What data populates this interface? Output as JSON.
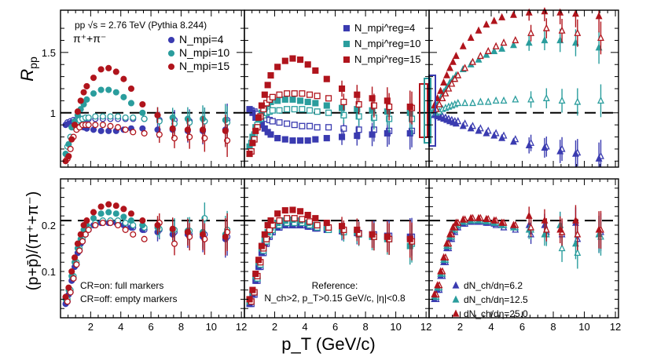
{
  "chart_data": {
    "type": "scatter",
    "title": "pp √s = 2.76 TeV (Pythia 8.244)",
    "particle_label": "π⁺+π⁻",
    "xlabel": "p_T (GeV/c)",
    "x_ticks": [
      "2",
      "4",
      "6",
      "8",
      "10",
      "12"
    ],
    "xlim": [
      0,
      12.2
    ],
    "top_row": {
      "ylabel": "R_pp",
      "ylim": [
        0.55,
        1.85
      ],
      "y_ticks": [
        "1",
        "1.5"
      ],
      "reference_line": 1.0
    },
    "bottom_row": {
      "ylabel": "(p+p̄)/(π⁺+π⁻)",
      "ylim": [
        0.0,
        0.3
      ],
      "y_ticks": [
        "0.1",
        "0.2"
      ],
      "reference_line": 0.21
    },
    "colors": {
      "series1": "#3a3bb0",
      "series2": "#2a9d9d",
      "series3": "#b0141c"
    },
    "legend_left": [
      "N_mpi=4",
      "N_mpi=10",
      "N_mpi=15"
    ],
    "legend_middle": [
      "N_mpi^reg=4",
      "N_mpi^reg=10",
      "N_mpi^reg=15"
    ],
    "legend_right": [
      "dN_ch/dη=6.2",
      "dN_ch/dη=12.5",
      "dN_ch/dη=25.0"
    ],
    "notes": {
      "cr_on": "CR=on: full markers",
      "cr_off": "CR=off: empty markers",
      "reference": "Reference:",
      "cuts": "N_ch>2, p_T>0.15 GeV/c, |η|<0.8"
    },
    "x_points": [
      0.4,
      0.6,
      0.8,
      1.0,
      1.2,
      1.4,
      1.6,
      1.8,
      2.25,
      2.75,
      3.25,
      3.75,
      4.25,
      4.75,
      5.5,
      6.5,
      7.5,
      8.5,
      9.5,
      11.0
    ],
    "panels": [
      {
        "name": "Nmpi",
        "row": "top",
        "col": 0,
        "marker": "circle",
        "series": [
          {
            "name": "N_mpi=4",
            "color_key": "series1",
            "full": [
              0.9,
              0.91,
              0.92,
              0.91,
              0.9,
              0.89,
              0.88,
              0.87,
              0.86,
              0.85,
              0.85,
              0.85,
              0.86,
              0.87,
              0.87,
              0.86,
              0.86,
              0.85,
              0.85,
              0.86
            ],
            "empty": [
              0.92,
              0.93,
              0.94,
              0.94,
              0.95,
              0.95,
              0.95,
              0.95,
              0.95,
              0.95,
              0.95,
              0.95,
              0.95,
              0.95,
              0.95,
              0.94,
              0.94,
              0.93,
              0.93,
              0.94
            ]
          },
          {
            "name": "N_mpi=10",
            "color_key": "series2",
            "full": [
              0.66,
              0.74,
              0.88,
              0.93,
              0.98,
              1.03,
              1.07,
              1.11,
              1.16,
              1.19,
              1.19,
              1.17,
              1.13,
              1.08,
              1.0,
              0.98,
              0.96,
              0.95,
              0.95,
              0.94
            ],
            "empty": [
              0.72,
              0.8,
              0.88,
              0.92,
              0.94,
              0.95,
              0.96,
              0.96,
              0.97,
              0.97,
              0.97,
              0.97,
              0.96,
              0.96,
              0.95,
              0.93,
              0.91,
              0.92,
              0.93,
              0.92
            ]
          },
          {
            "name": "N_mpi=15",
            "color_key": "series3",
            "full": [
              0.6,
              0.64,
              0.78,
              0.9,
              1.01,
              1.1,
              1.17,
              1.22,
              1.29,
              1.36,
              1.37,
              1.34,
              1.28,
              1.2,
              1.07,
              0.98,
              0.87,
              0.86,
              0.86,
              0.85
            ],
            "empty": [
              0.62,
              0.7,
              0.8,
              0.86,
              0.88,
              0.9,
              0.9,
              0.9,
              0.9,
              0.9,
              0.89,
              0.88,
              0.86,
              0.84,
              0.83,
              0.82,
              0.79,
              0.8,
              0.79,
              0.77
            ]
          }
        ]
      },
      {
        "name": "Nmpi_reg",
        "row": "top",
        "col": 1,
        "marker": "square",
        "series": [
          {
            "name": "N_mpi^reg=4",
            "color_key": "series1",
            "full": [
              1.03,
              1.0,
              0.96,
              0.93,
              0.9,
              0.87,
              0.84,
              0.82,
              0.79,
              0.78,
              0.77,
              0.77,
              0.77,
              0.78,
              0.79,
              0.8,
              0.81,
              0.82,
              0.83,
              0.83
            ],
            "empty": [
              1.02,
              1.01,
              0.99,
              0.97,
              0.96,
              0.95,
              0.94,
              0.93,
              0.92,
              0.91,
              0.9,
              0.89,
              0.89,
              0.88,
              0.88,
              0.87,
              0.86,
              0.86,
              0.85,
              0.85
            ]
          },
          {
            "name": "N_mpi^reg=10",
            "color_key": "series2",
            "full": [
              0.72,
              0.8,
              0.88,
              0.95,
              1.0,
              1.04,
              1.07,
              1.09,
              1.1,
              1.11,
              1.11,
              1.1,
              1.09,
              1.08,
              1.06,
              1.04,
              1.03,
              1.02,
              1.01,
              1.0
            ],
            "empty": [
              0.75,
              0.82,
              0.9,
              0.95,
              0.98,
              1.0,
              1.01,
              1.02,
              1.02,
              1.03,
              1.03,
              1.03,
              1.02,
              1.01,
              1.0,
              0.98,
              0.97,
              0.96,
              0.95,
              0.95
            ]
          },
          {
            "name": "N_mpi^reg=15",
            "color_key": "series3",
            "full": [
              0.66,
              0.75,
              0.85,
              0.96,
              1.06,
              1.15,
              1.23,
              1.31,
              1.38,
              1.43,
              1.45,
              1.44,
              1.4,
              1.35,
              1.28,
              1.2,
              1.15,
              1.12,
              1.1,
              1.05
            ],
            "empty": [
              0.68,
              0.78,
              0.88,
              0.97,
              1.03,
              1.08,
              1.11,
              1.13,
              1.15,
              1.16,
              1.16,
              1.16,
              1.15,
              1.14,
              1.12,
              1.09,
              1.07,
              1.06,
              1.05,
              1.04
            ]
          }
        ]
      },
      {
        "name": "dNch",
        "row": "top",
        "col": 2,
        "marker": "triangle",
        "series": [
          {
            "name": "dN_ch/dη=6.2",
            "color_key": "series1",
            "full": [
              0.98,
              0.97,
              0.96,
              0.95,
              0.94,
              0.93,
              0.92,
              0.91,
              0.89,
              0.87,
              0.85,
              0.83,
              0.81,
              0.79,
              0.76,
              0.73,
              0.71,
              0.68,
              0.66,
              0.62
            ],
            "empty": [
              0.99,
              0.98,
              0.97,
              0.96,
              0.95,
              0.94,
              0.93,
              0.93,
              0.91,
              0.89,
              0.87,
              0.85,
              0.83,
              0.81,
              0.78,
              0.75,
              0.72,
              0.7,
              0.67,
              0.64
            ]
          },
          {
            "name": "dN_ch/dη=12.5",
            "color_key": "series2",
            "full": [
              1.03,
              1.07,
              1.12,
              1.17,
              1.21,
              1.25,
              1.28,
              1.31,
              1.36,
              1.4,
              1.44,
              1.48,
              1.51,
              1.53,
              1.56,
              1.58,
              1.6,
              1.6,
              1.58,
              1.54
            ],
            "empty": [
              1.0,
              1.01,
              1.03,
              1.04,
              1.05,
              1.06,
              1.07,
              1.08,
              1.08,
              1.08,
              1.09,
              1.09,
              1.1,
              1.1,
              1.11,
              1.11,
              1.12,
              1.1,
              1.09,
              1.1
            ]
          },
          {
            "name": "dN_ch/dη=25.0",
            "color_key": "series3",
            "full": [
              1.06,
              1.12,
              1.18,
              1.25,
              1.31,
              1.37,
              1.42,
              1.47,
              1.55,
              1.62,
              1.68,
              1.73,
              1.76,
              1.79,
              1.81,
              1.83,
              1.84,
              1.83,
              1.82,
              1.8
            ],
            "empty": [
              1.03,
              1.07,
              1.12,
              1.16,
              1.2,
              1.24,
              1.28,
              1.31,
              1.37,
              1.42,
              1.47,
              1.51,
              1.55,
              1.58,
              1.6,
              1.66,
              1.7,
              1.68,
              1.66,
              1.62
            ]
          }
        ]
      },
      {
        "name": "Nmpi_ratio",
        "row": "bottom",
        "col": 0,
        "marker": "circle",
        "series": [
          {
            "name": "N_mpi=4",
            "color_key": "series1",
            "full": [
              0.03,
              0.05,
              0.08,
              0.11,
              0.14,
              0.16,
              0.18,
              0.19,
              0.2,
              0.205,
              0.205,
              0.205,
              0.2,
              0.195,
              0.19,
              0.185,
              0.18,
              0.18,
              0.175,
              0.17
            ],
            "empty": [
              0.035,
              0.055,
              0.085,
              0.115,
              0.145,
              0.165,
              0.18,
              0.19,
              0.2,
              0.205,
              0.205,
              0.205,
              0.2,
              0.195,
              0.19,
              0.19,
              0.185,
              0.18,
              0.18,
              0.175
            ]
          },
          {
            "name": "N_mpi=10",
            "color_key": "series2",
            "full": [
              0.04,
              0.06,
              0.09,
              0.12,
              0.15,
              0.17,
              0.19,
              0.2,
              0.215,
              0.225,
              0.228,
              0.225,
              0.218,
              0.21,
              0.2,
              0.195,
              0.19,
              0.188,
              0.185,
              0.18
            ],
            "empty": [
              0.04,
              0.06,
              0.09,
              0.12,
              0.15,
              0.17,
              0.185,
              0.195,
              0.205,
              0.21,
              0.21,
              0.21,
              0.205,
              0.2,
              0.195,
              0.192,
              0.19,
              0.188,
              0.215,
              0.19
            ]
          },
          {
            "name": "N_mpi=15",
            "color_key": "series3",
            "full": [
              0.045,
              0.065,
              0.1,
              0.13,
              0.16,
              0.18,
              0.2,
              0.21,
              0.228,
              0.24,
              0.245,
              0.242,
              0.235,
              0.225,
              0.21,
              0.2,
              0.192,
              0.185,
              0.18,
              0.175
            ],
            "empty": [
              0.035,
              0.055,
              0.085,
              0.115,
              0.145,
              0.165,
              0.18,
              0.19,
              0.2,
              0.205,
              0.205,
              0.2,
              0.19,
              0.18,
              0.17,
              0.205,
              0.16,
              0.175,
              0.17,
              0.185
            ]
          }
        ]
      },
      {
        "name": "Nmpi_reg_ratio",
        "row": "bottom",
        "col": 1,
        "marker": "square",
        "series": [
          {
            "name": "N_mpi^reg=4",
            "color_key": "series1",
            "full": [
              0.03,
              0.05,
              0.08,
              0.11,
              0.14,
              0.16,
              0.175,
              0.185,
              0.195,
              0.2,
              0.2,
              0.2,
              0.197,
              0.193,
              0.19,
              0.187,
              0.183,
              0.18,
              0.177,
              0.175
            ],
            "empty": [
              0.03,
              0.05,
              0.08,
              0.11,
              0.14,
              0.16,
              0.175,
              0.185,
              0.195,
              0.2,
              0.2,
              0.2,
              0.197,
              0.193,
              0.19,
              0.187,
              0.183,
              0.18,
              0.177,
              0.175
            ]
          },
          {
            "name": "N_mpi^reg=10",
            "color_key": "series2",
            "full": [
              0.035,
              0.055,
              0.09,
              0.12,
              0.15,
              0.17,
              0.185,
              0.195,
              0.205,
              0.21,
              0.212,
              0.21,
              0.205,
              0.2,
              0.195,
              0.19,
              0.185,
              0.175,
              0.17,
              0.155
            ],
            "empty": [
              0.035,
              0.055,
              0.085,
              0.115,
              0.145,
              0.165,
              0.18,
              0.19,
              0.2,
              0.205,
              0.205,
              0.205,
              0.2,
              0.195,
              0.19,
              0.185,
              0.18,
              0.175,
              0.17,
              0.16
            ]
          },
          {
            "name": "N_mpi^reg=15",
            "color_key": "series3",
            "full": [
              0.04,
              0.06,
              0.095,
              0.125,
              0.155,
              0.18,
              0.2,
              0.21,
              0.225,
              0.232,
              0.233,
              0.23,
              0.222,
              0.215,
              0.205,
              0.198,
              0.19,
              0.18,
              0.175,
              0.17
            ],
            "empty": [
              0.035,
              0.055,
              0.09,
              0.12,
              0.15,
              0.17,
              0.19,
              0.2,
              0.21,
              0.215,
              0.215,
              0.213,
              0.208,
              0.2,
              0.195,
              0.19,
              0.182,
              0.175,
              0.17,
              0.165
            ]
          }
        ]
      },
      {
        "name": "dNch_ratio",
        "row": "bottom",
        "col": 2,
        "marker": "triangle",
        "series": [
          {
            "name": "dN_ch/dη=6.2",
            "color_key": "series1",
            "full": [
              0.04,
              0.06,
              0.09,
              0.12,
              0.15,
              0.17,
              0.185,
              0.195,
              0.203,
              0.207,
              0.207,
              0.205,
              0.203,
              0.2,
              0.198,
              0.2,
              0.2,
              0.2,
              0.205,
              0.18
            ],
            "empty": [
              0.04,
              0.06,
              0.09,
              0.12,
              0.15,
              0.17,
              0.185,
              0.195,
              0.203,
              0.207,
              0.207,
              0.205,
              0.2,
              0.195,
              0.19,
              0.18,
              0.185,
              0.18,
              0.17,
              0.185
            ]
          },
          {
            "name": "dN_ch/dη=12.5",
            "color_key": "series2",
            "full": [
              0.045,
              0.065,
              0.095,
              0.125,
              0.155,
              0.175,
              0.19,
              0.2,
              0.207,
              0.21,
              0.21,
              0.208,
              0.205,
              0.2,
              0.195,
              0.19,
              0.18,
              0.2,
              0.16,
              0.18
            ],
            "empty": [
              0.045,
              0.065,
              0.095,
              0.125,
              0.155,
              0.175,
              0.19,
              0.2,
              0.207,
              0.21,
              0.21,
              0.208,
              0.205,
              0.2,
              0.195,
              0.19,
              0.18,
              0.15,
              0.14,
              0.175
            ]
          },
          {
            "name": "dN_ch/dη=25.0",
            "color_key": "series3",
            "full": [
              0.05,
              0.07,
              0.1,
              0.13,
              0.16,
              0.18,
              0.195,
              0.205,
              0.212,
              0.215,
              0.215,
              0.213,
              0.21,
              0.205,
              0.2,
              0.22,
              0.21,
              0.19,
              0.21,
              0.19
            ],
            "empty": [
              0.05,
              0.07,
              0.1,
              0.13,
              0.16,
              0.18,
              0.195,
              0.205,
              0.212,
              0.215,
              0.215,
              0.213,
              0.21,
              0.205,
              0.2,
              0.195,
              0.19,
              0.185,
              0.18,
              0.19
            ]
          }
        ]
      }
    ]
  }
}
